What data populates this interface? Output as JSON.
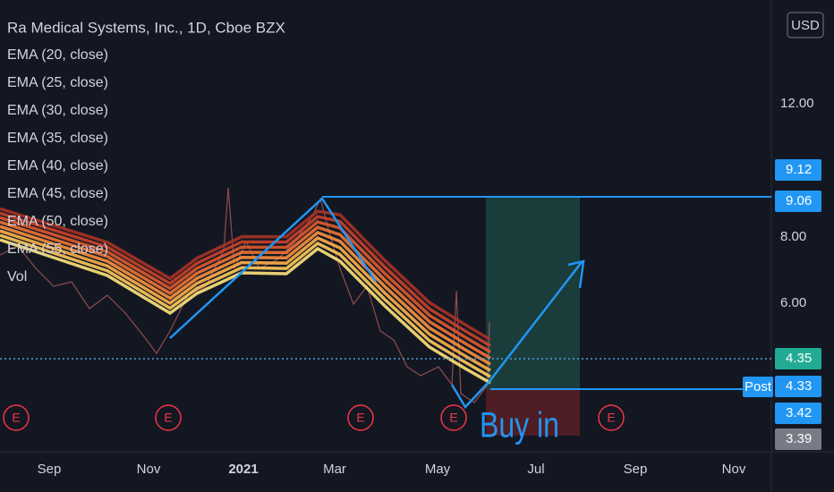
{
  "header": {
    "title": "Ra Medical Systems, Inc., 1D, Cboe BZX",
    "currency": "USD"
  },
  "legend": [
    "EMA (20, close)",
    "EMA (25, close)",
    "EMA (30, close)",
    "EMA (35, close)",
    "EMA (40, close)",
    "EMA (45, close)",
    "EMA (50, close)",
    "EMA (55, close)",
    "Vol"
  ],
  "price_axis": [
    "12.00",
    "8.00",
    "6.00"
  ],
  "price_badges": [
    {
      "label": "9.12",
      "kind": "blue"
    },
    {
      "label": "9.06",
      "kind": "blue"
    },
    {
      "label": "4.35",
      "kind": "green"
    },
    {
      "label": "4.33",
      "kind": "blue"
    },
    {
      "label": "3.42",
      "kind": "blue"
    },
    {
      "label": "3.39",
      "kind": "gray"
    }
  ],
  "post_tag": "Post",
  "time_axis": [
    "Sep",
    "Nov",
    "2021",
    "Mar",
    "May",
    "Jul",
    "Sep",
    "Nov"
  ],
  "earnings_marker": "E",
  "annotation": "Buy in"
}
